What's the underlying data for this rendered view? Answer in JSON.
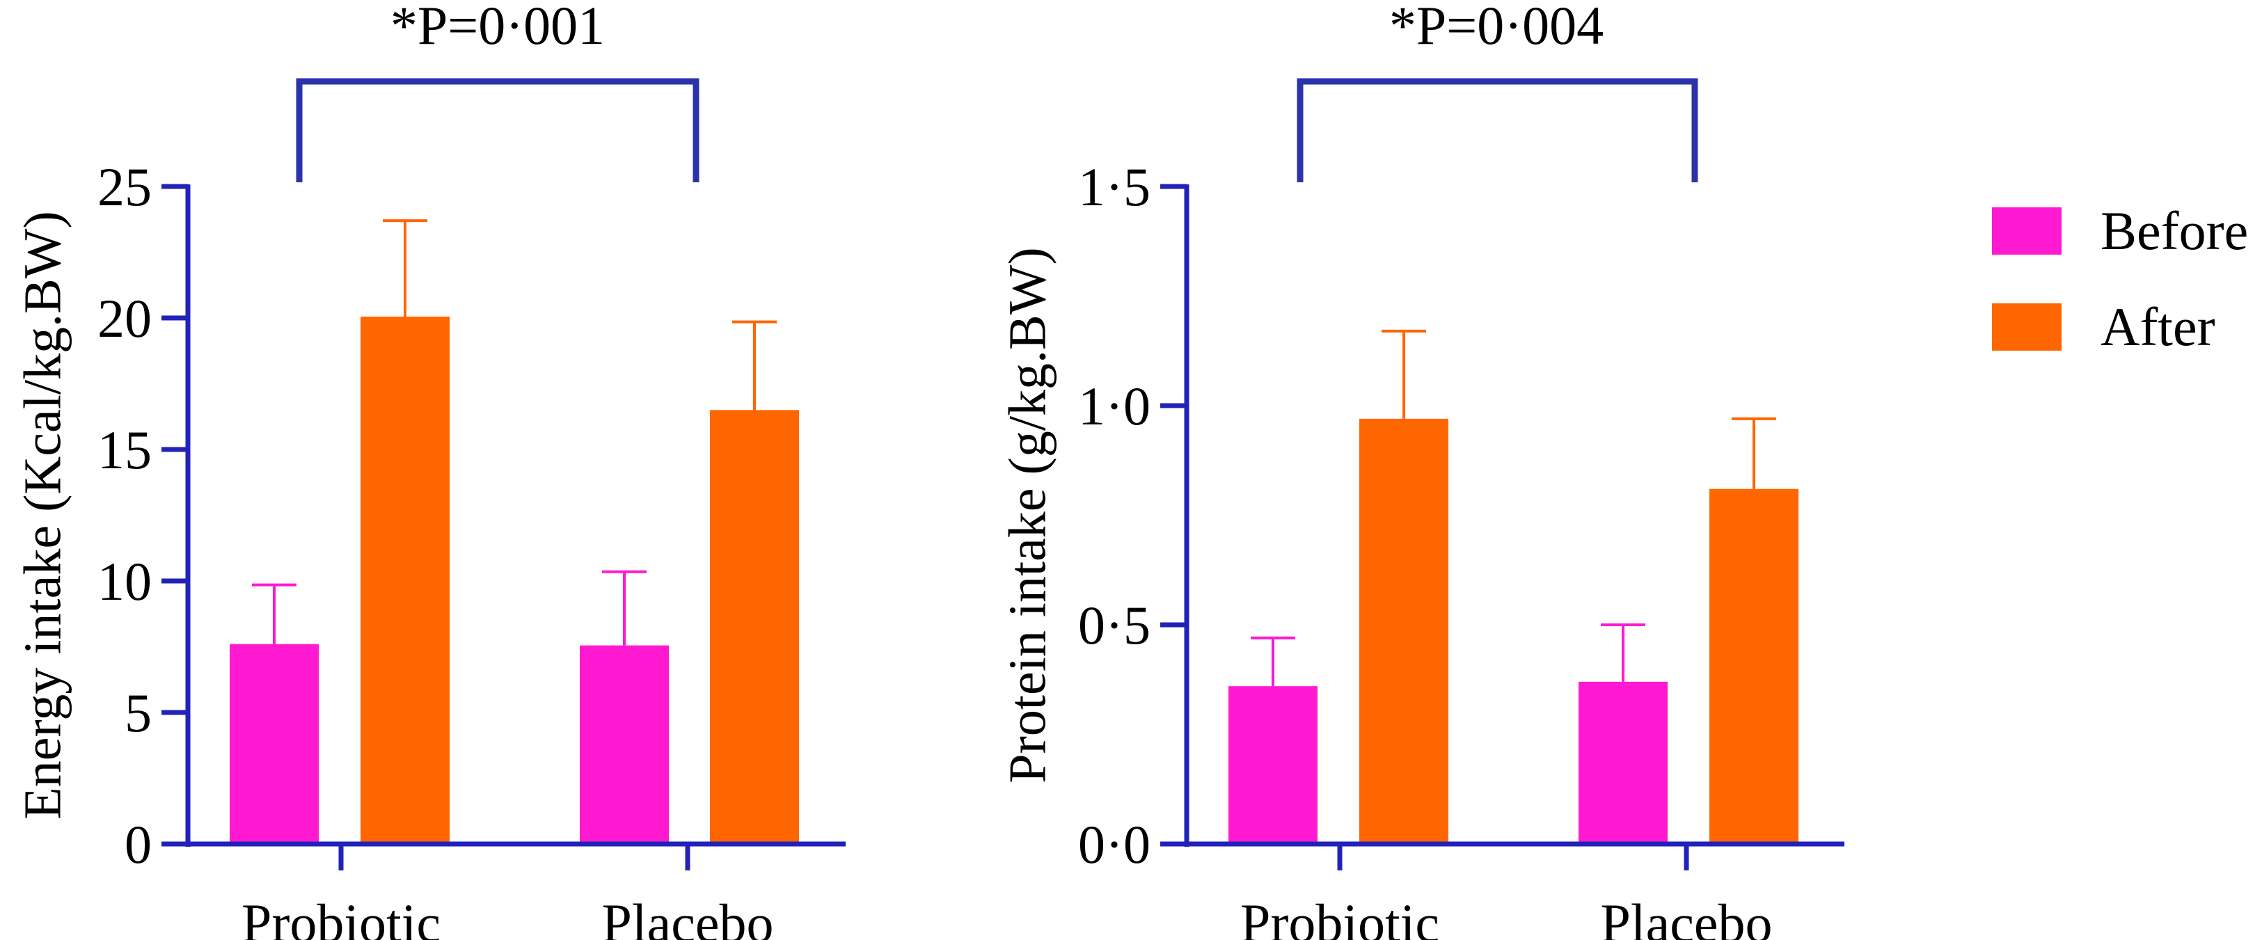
{
  "colors": {
    "before": "#ff19d0",
    "after": "#ff6600",
    "axis": "#2222bb",
    "bracket": "#2a33aa"
  },
  "legend": {
    "items": [
      {
        "label": "Before",
        "color_key": "before"
      },
      {
        "label": "After",
        "color_key": "after"
      }
    ]
  },
  "chart_data": [
    {
      "type": "bar",
      "ylabel": "Energy intake (Kcal/kg.BW)",
      "xlabel": "",
      "ylim": [
        0,
        25
      ],
      "yticks": [
        "0",
        "5",
        "10",
        "15",
        "20",
        "25"
      ],
      "categories": [
        "Probiotic",
        "Placebo"
      ],
      "series": [
        {
          "name": "Before",
          "values": [
            7.6,
            7.55
          ],
          "error": [
            2.25,
            2.8
          ]
        },
        {
          "name": "After",
          "values": [
            20.05,
            16.5
          ],
          "error": [
            3.65,
            3.35
          ]
        }
      ],
      "annotation": "*P=0·001",
      "legend": false
    },
    {
      "type": "bar",
      "ylabel": "Protein intake (g/kg.BW)",
      "xlabel": "",
      "ylim": [
        0,
        1.5
      ],
      "yticks": [
        "0·0",
        "0·5",
        "1·0",
        "1·5"
      ],
      "categories": [
        "Probiotic",
        "Placebo"
      ],
      "series": [
        {
          "name": "Before",
          "values": [
            0.36,
            0.37
          ],
          "error": [
            0.11,
            0.13
          ]
        },
        {
          "name": "After",
          "values": [
            0.97,
            0.81
          ],
          "error": [
            0.2,
            0.16
          ]
        }
      ],
      "annotation": "*P=0·004",
      "legend": "right"
    }
  ]
}
